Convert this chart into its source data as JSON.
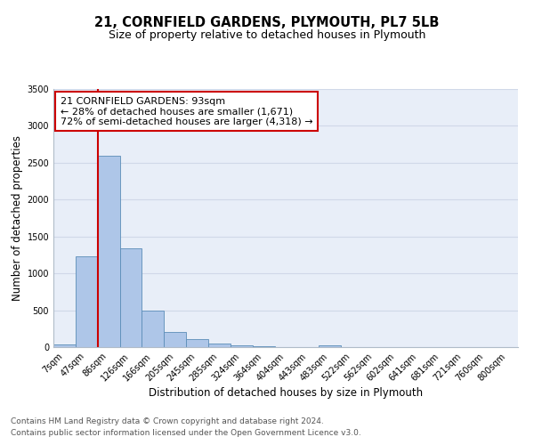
{
  "title_line1": "21, CORNFIELD GARDENS, PLYMOUTH, PL7 5LB",
  "title_line2": "Size of property relative to detached houses in Plymouth",
  "xlabel": "Distribution of detached houses by size in Plymouth",
  "ylabel": "Number of detached properties",
  "bar_labels": [
    "7sqm",
    "47sqm",
    "86sqm",
    "126sqm",
    "166sqm",
    "205sqm",
    "245sqm",
    "285sqm",
    "324sqm",
    "364sqm",
    "404sqm",
    "443sqm",
    "483sqm",
    "522sqm",
    "562sqm",
    "602sqm",
    "641sqm",
    "681sqm",
    "721sqm",
    "760sqm",
    "800sqm"
  ],
  "bar_values": [
    40,
    1230,
    2590,
    1340,
    500,
    210,
    110,
    45,
    20,
    10,
    5,
    5,
    30,
    0,
    0,
    0,
    0,
    0,
    0,
    0,
    0
  ],
  "bar_color": "#aec6e8",
  "bar_edge_color": "#5b8db8",
  "grid_color": "#d0d8e8",
  "background_color": "#e8eef8",
  "vline_color": "#cc0000",
  "annotation_text": "21 CORNFIELD GARDENS: 93sqm\n← 28% of detached houses are smaller (1,671)\n72% of semi-detached houses are larger (4,318) →",
  "annotation_box_color": "#ffffff",
  "annotation_box_edge": "#cc0000",
  "ylim": [
    0,
    3500
  ],
  "yticks": [
    0,
    500,
    1000,
    1500,
    2000,
    2500,
    3000,
    3500
  ],
  "footer_line1": "Contains HM Land Registry data © Crown copyright and database right 2024.",
  "footer_line2": "Contains public sector information licensed under the Open Government Licence v3.0.",
  "title_fontsize": 10.5,
  "subtitle_fontsize": 9,
  "axis_label_fontsize": 8.5,
  "tick_fontsize": 7,
  "annotation_fontsize": 8,
  "footer_fontsize": 6.5
}
